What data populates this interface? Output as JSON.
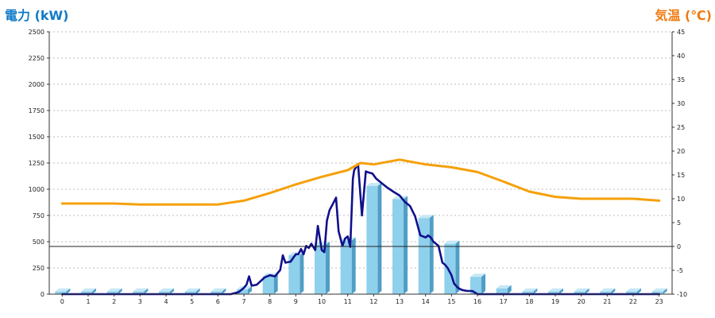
{
  "chart_data": {
    "type": "bar",
    "title": "",
    "left_axis": {
      "label": "電力 (kW)",
      "min": 0,
      "max": 2500,
      "step": 250,
      "ticks": [
        "0",
        "250",
        "500",
        "750",
        "1000",
        "1250",
        "1500",
        "1750",
        "2000",
        "2250",
        "2500"
      ]
    },
    "right_axis": {
      "label": "気温 (℃)",
      "min": -10,
      "max": 45,
      "step": 5,
      "ticks": [
        "-10",
        "-5",
        "0",
        "5",
        "10",
        "15",
        "20",
        "25",
        "30",
        "35",
        "40",
        "45"
      ]
    },
    "categories": [
      "0",
      "1",
      "2",
      "3",
      "4",
      "5",
      "6",
      "7",
      "8",
      "9",
      "10",
      "11",
      "12",
      "13",
      "14",
      "15",
      "16",
      "17",
      "18",
      "19",
      "20",
      "21",
      "22",
      "23"
    ],
    "grid": true,
    "series": [
      {
        "kind": "bar",
        "axis": "left",
        "color": "#8fd0ec",
        "values": [
          25,
          25,
          25,
          25,
          25,
          25,
          25,
          45,
          170,
          370,
          470,
          510,
          1030,
          905,
          725,
          480,
          165,
          55,
          25,
          25,
          25,
          25,
          25,
          25
        ]
      },
      {
        "kind": "line",
        "axis": "left",
        "color": "#10108c",
        "x": [
          0,
          1,
          2,
          3,
          4,
          5,
          6,
          6.5,
          6.8,
          7,
          7.1,
          7.2,
          7.3,
          7.5,
          7.8,
          8,
          8.2,
          8.4,
          8.5,
          8.6,
          8.8,
          9,
          9.1,
          9.2,
          9.3,
          9.4,
          9.5,
          9.6,
          9.75,
          9.85,
          10,
          10.1,
          10.2,
          10.3,
          10.45,
          10.55,
          10.65,
          10.8,
          10.9,
          11,
          11.1,
          11.2,
          11.25,
          11.4,
          11.55,
          11.7,
          11.8,
          11.95,
          12.1,
          12.3,
          12.5,
          12.8,
          13,
          13.2,
          13.4,
          13.6,
          13.8,
          14,
          14.1,
          14.2,
          14.3,
          14.5,
          14.65,
          14.75,
          14.85,
          15,
          15.1,
          15.25,
          15.4,
          15.6,
          15.8,
          16,
          16.3,
          16.6,
          16.8,
          17,
          17.1,
          18,
          19,
          20,
          21,
          22,
          23
        ],
        "values": [
          0,
          0,
          0,
          0,
          0,
          0,
          0,
          0,
          20,
          60,
          90,
          170,
          80,
          90,
          160,
          180,
          170,
          230,
          370,
          300,
          310,
          380,
          380,
          430,
          380,
          460,
          440,
          480,
          420,
          650,
          420,
          400,
          700,
          800,
          870,
          920,
          600,
          460,
          530,
          550,
          450,
          1100,
          1180,
          1240,
          750,
          1170,
          1160,
          1150,
          1100,
          1060,
          1020,
          970,
          940,
          880,
          840,
          740,
          560,
          540,
          560,
          540,
          500,
          460,
          300,
          280,
          250,
          180,
          100,
          60,
          40,
          30,
          30,
          0,
          0,
          0,
          0,
          0,
          0,
          0,
          0,
          0,
          0,
          0,
          0
        ]
      },
      {
        "kind": "line",
        "axis": "right",
        "color": "#f5a00a",
        "x": [
          0,
          1,
          2,
          3,
          4,
          5,
          6,
          7,
          8,
          9,
          10,
          11,
          11.5,
          12,
          13,
          14,
          15,
          16,
          17,
          18,
          19,
          20,
          21,
          22,
          23
        ],
        "values": [
          9,
          9,
          9,
          8.8,
          8.8,
          8.8,
          8.8,
          9.6,
          11.2,
          13,
          14.6,
          16,
          17.5,
          17.2,
          18.2,
          17.2,
          16.6,
          15.6,
          13.6,
          11.5,
          10.4,
          10,
          10,
          10,
          9.6
        ]
      }
    ]
  }
}
